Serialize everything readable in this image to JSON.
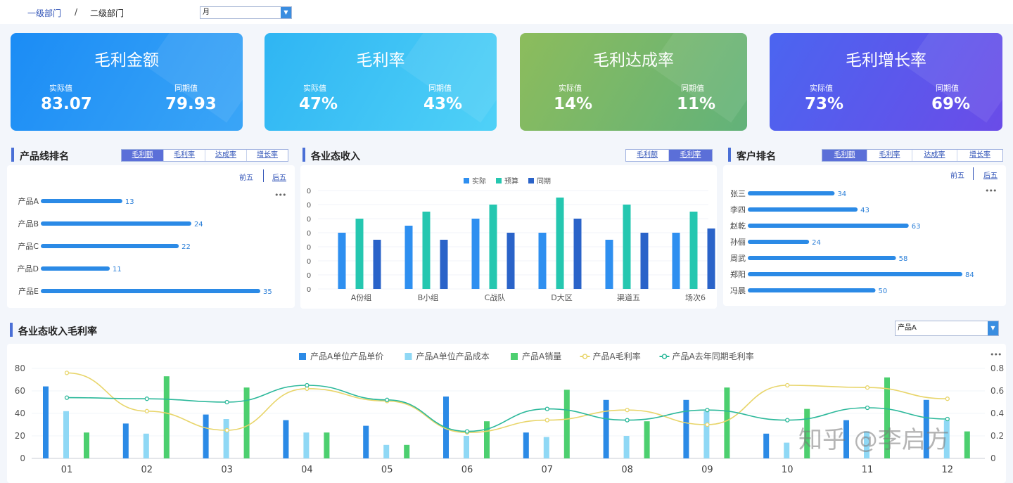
{
  "breadcrumb": {
    "level1": "一级部门",
    "sep": "/",
    "level2": "二级部门"
  },
  "period_select": {
    "value": "月"
  },
  "kpis": [
    {
      "title": "毛利金额",
      "actual_label": "实际值",
      "actual": "83.07",
      "prior_label": "同期值",
      "prior": "79.93"
    },
    {
      "title": "毛利率",
      "actual_label": "实际值",
      "actual": "47%",
      "prior_label": "同期值",
      "prior": "43%"
    },
    {
      "title": "毛利达成率",
      "actual_label": "实际值",
      "actual": "14%",
      "prior_label": "同期值",
      "prior": "11%"
    },
    {
      "title": "毛利增长率",
      "actual_label": "实际值",
      "actual": "73%",
      "prior_label": "同期值",
      "prior": "69%"
    }
  ],
  "product_rank": {
    "title": "产品线排名",
    "tabs": [
      "毛利额",
      "毛利率",
      "达成率",
      "增长率"
    ],
    "top5": "前五",
    "bottom5": "后五",
    "more": "•••"
  },
  "biz_income": {
    "title": "各业态收入",
    "tabs": [
      "毛利额",
      "毛利率"
    ]
  },
  "customer_rank": {
    "title": "客户排名",
    "tabs": [
      "毛利额",
      "毛利率",
      "达成率",
      "增长率"
    ],
    "top5": "前五",
    "bottom5": "后五",
    "more": "•••"
  },
  "margin_section": {
    "title": "各业态收入毛利率",
    "product_select": "产品A",
    "more": "•••"
  },
  "watermark": "知乎 @李启方",
  "chart_data": [
    {
      "type": "bar",
      "orientation": "horizontal",
      "categories": [
        "产品A",
        "产品B",
        "产品C",
        "产品D",
        "产品E"
      ],
      "values": [
        13,
        24,
        22,
        11,
        35
      ],
      "color": "#2b8ae6"
    },
    {
      "type": "bar",
      "categories": [
        "A份组",
        "B小组",
        "C战队",
        "D大区",
        "渠道五",
        "场次6"
      ],
      "series": [
        {
          "name": "实际",
          "values": [
            40,
            45,
            50,
            40,
            35,
            40
          ],
          "color": "#2e8ff0"
        },
        {
          "name": "预算",
          "values": [
            50,
            55,
            60,
            65,
            60,
            55
          ],
          "color": "#25c7b0"
        },
        {
          "name": "同期",
          "values": [
            35,
            35,
            40,
            50,
            40,
            43
          ],
          "color": "#2a63c9"
        }
      ],
      "y_ticks": [
        "0",
        "0",
        "0",
        "0",
        "0",
        "0",
        "0",
        "0"
      ],
      "ylim": [
        0,
        70
      ]
    },
    {
      "type": "bar",
      "orientation": "horizontal",
      "categories": [
        "张三",
        "李四",
        "赵乾",
        "孙俪",
        "周武",
        "郑阳",
        "冯晨"
      ],
      "values": [
        34,
        43,
        63,
        24,
        58,
        84,
        50
      ],
      "color": "#2b8ae6"
    },
    {
      "type": "bar+line",
      "categories": [
        "01",
        "02",
        "03",
        "04",
        "05",
        "06",
        "07",
        "08",
        "09",
        "10",
        "11",
        "12"
      ],
      "series": [
        {
          "name": "产品A单位产品单价",
          "kind": "bar",
          "axis": "left",
          "color": "#2b8ae6",
          "values": [
            64,
            31,
            39,
            34,
            29,
            55,
            23,
            52,
            52,
            22,
            34,
            52
          ]
        },
        {
          "name": "产品A单位产品成本",
          "kind": "bar",
          "axis": "left",
          "color": "#8fd8f5",
          "values": [
            42,
            22,
            35,
            23,
            12,
            20,
            19,
            20,
            42,
            14,
            24,
            34
          ]
        },
        {
          "name": "产品A销量",
          "kind": "bar",
          "axis": "left",
          "color": "#4ccf6f",
          "values": [
            23,
            73,
            63,
            23,
            12,
            33,
            61,
            33,
            63,
            44,
            72,
            24
          ]
        },
        {
          "name": "产品A毛利率",
          "kind": "line",
          "axis": "right",
          "color": "#e8d56a",
          "values": [
            0.76,
            0.42,
            0.25,
            0.62,
            0.51,
            0.23,
            0.34,
            0.43,
            0.3,
            0.65,
            0.63,
            0.53
          ]
        },
        {
          "name": "产品A去年同期毛利率",
          "kind": "line",
          "axis": "right",
          "color": "#2bb89a",
          "values": [
            0.54,
            0.53,
            0.5,
            0.65,
            0.52,
            0.24,
            0.44,
            0.34,
            0.43,
            0.34,
            0.45,
            0.35
          ]
        }
      ],
      "y_left": {
        "ylim": [
          0,
          80
        ],
        "ticks": [
          "0",
          "20",
          "40",
          "60",
          "80"
        ]
      },
      "y_right": {
        "ylim": [
          0,
          0.8
        ],
        "ticks": [
          "0",
          "0.2",
          "0.4",
          "0.6",
          "0.8"
        ]
      }
    }
  ]
}
